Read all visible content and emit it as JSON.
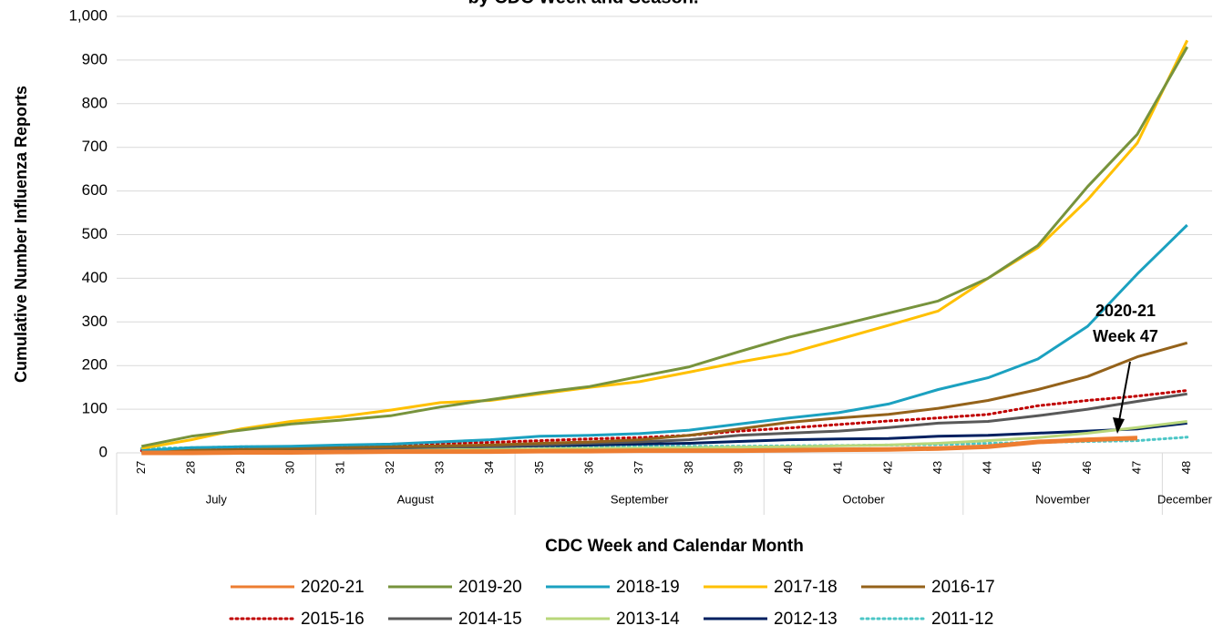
{
  "chart_data": {
    "type": "line",
    "title": "by CDC Week and Season.",
    "y_label": "Cumulative Number Influenza Reports",
    "x_label": "CDC Week and Calendar Month",
    "categories": [
      "27",
      "28",
      "29",
      "30",
      "31",
      "32",
      "33",
      "34",
      "35",
      "36",
      "37",
      "38",
      "39",
      "40",
      "41",
      "42",
      "43",
      "44",
      "45",
      "46",
      "47",
      "48"
    ],
    "month_groups": [
      {
        "label": "July",
        "first": "27",
        "last": "30"
      },
      {
        "label": "August",
        "first": "31",
        "last": "34"
      },
      {
        "label": "September",
        "first": "35",
        "last": "39"
      },
      {
        "label": "October",
        "first": "40",
        "last": "43"
      },
      {
        "label": "November",
        "first": "44",
        "last": "47"
      },
      {
        "label": "December",
        "first": "48",
        "last": "48"
      }
    ],
    "ylim": [
      0,
      1000
    ],
    "yticks": [
      0,
      100,
      200,
      300,
      400,
      500,
      600,
      700,
      800,
      900,
      {
        "value": 1000,
        "label": "1,000"
      }
    ],
    "grid": true,
    "annotation": {
      "lines": [
        "2020-21",
        "Week 47"
      ]
    },
    "series": [
      {
        "name": "2020-21",
        "color": "#ed7d31",
        "style": "thick",
        "values": [
          0,
          0,
          1,
          1,
          2,
          3,
          3,
          3,
          4,
          4,
          5,
          5,
          5,
          6,
          7,
          8,
          10,
          14,
          25,
          30,
          34,
          null
        ]
      },
      {
        "name": "2019-20",
        "color": "#77933c",
        "values": [
          15,
          38,
          52,
          66,
          75,
          85,
          105,
          122,
          138,
          152,
          175,
          197,
          232,
          265,
          292,
          320,
          348,
          400,
          475,
          610,
          730,
          930
        ]
      },
      {
        "name": "2018-19",
        "color": "#1ba1c0",
        "values": [
          5,
          12,
          14,
          15,
          18,
          20,
          25,
          30,
          38,
          40,
          44,
          52,
          66,
          80,
          92,
          112,
          145,
          172,
          215,
          290,
          410,
          522
        ]
      },
      {
        "name": "2017-18",
        "color": "#ffc000",
        "values": [
          10,
          30,
          55,
          72,
          83,
          98,
          115,
          120,
          135,
          150,
          163,
          185,
          208,
          228,
          260,
          292,
          325,
          400,
          470,
          580,
          710,
          945
        ]
      },
      {
        "name": "2016-17",
        "color": "#94621a",
        "values": [
          3,
          6,
          8,
          10,
          12,
          14,
          16,
          18,
          22,
          25,
          30,
          40,
          55,
          70,
          80,
          88,
          102,
          120,
          145,
          175,
          220,
          252
        ]
      },
      {
        "name": "2015-16",
        "color": "#c00000",
        "style": "dotted",
        "values": [
          5,
          10,
          12,
          14,
          16,
          20,
          22,
          24,
          28,
          32,
          35,
          40,
          50,
          57,
          65,
          73,
          80,
          88,
          108,
          120,
          130,
          143
        ]
      },
      {
        "name": "2014-15",
        "color": "#595959",
        "values": [
          2,
          4,
          5,
          7,
          9,
          11,
          13,
          15,
          18,
          22,
          25,
          30,
          40,
          45,
          50,
          58,
          68,
          72,
          85,
          100,
          118,
          135
        ]
      },
      {
        "name": "2013-14",
        "color": "#b8d77a",
        "values": [
          1,
          2,
          3,
          4,
          5,
          6,
          7,
          8,
          9,
          10,
          11,
          12,
          13,
          14,
          16,
          18,
          22,
          28,
          35,
          45,
          58,
          72
        ]
      },
      {
        "name": "2012-13",
        "color": "#002060",
        "values": [
          2,
          4,
          5,
          6,
          8,
          10,
          12,
          14,
          16,
          18,
          20,
          22,
          26,
          30,
          32,
          33,
          38,
          40,
          45,
          50,
          55,
          68
        ]
      },
      {
        "name": "2011-12",
        "color": "#4bc6c6",
        "style": "dotted",
        "values": [
          10,
          12,
          14,
          14,
          15,
          15,
          15,
          15,
          15,
          15,
          15,
          15,
          15,
          16,
          17,
          18,
          19,
          22,
          24,
          26,
          28,
          36
        ]
      }
    ]
  }
}
